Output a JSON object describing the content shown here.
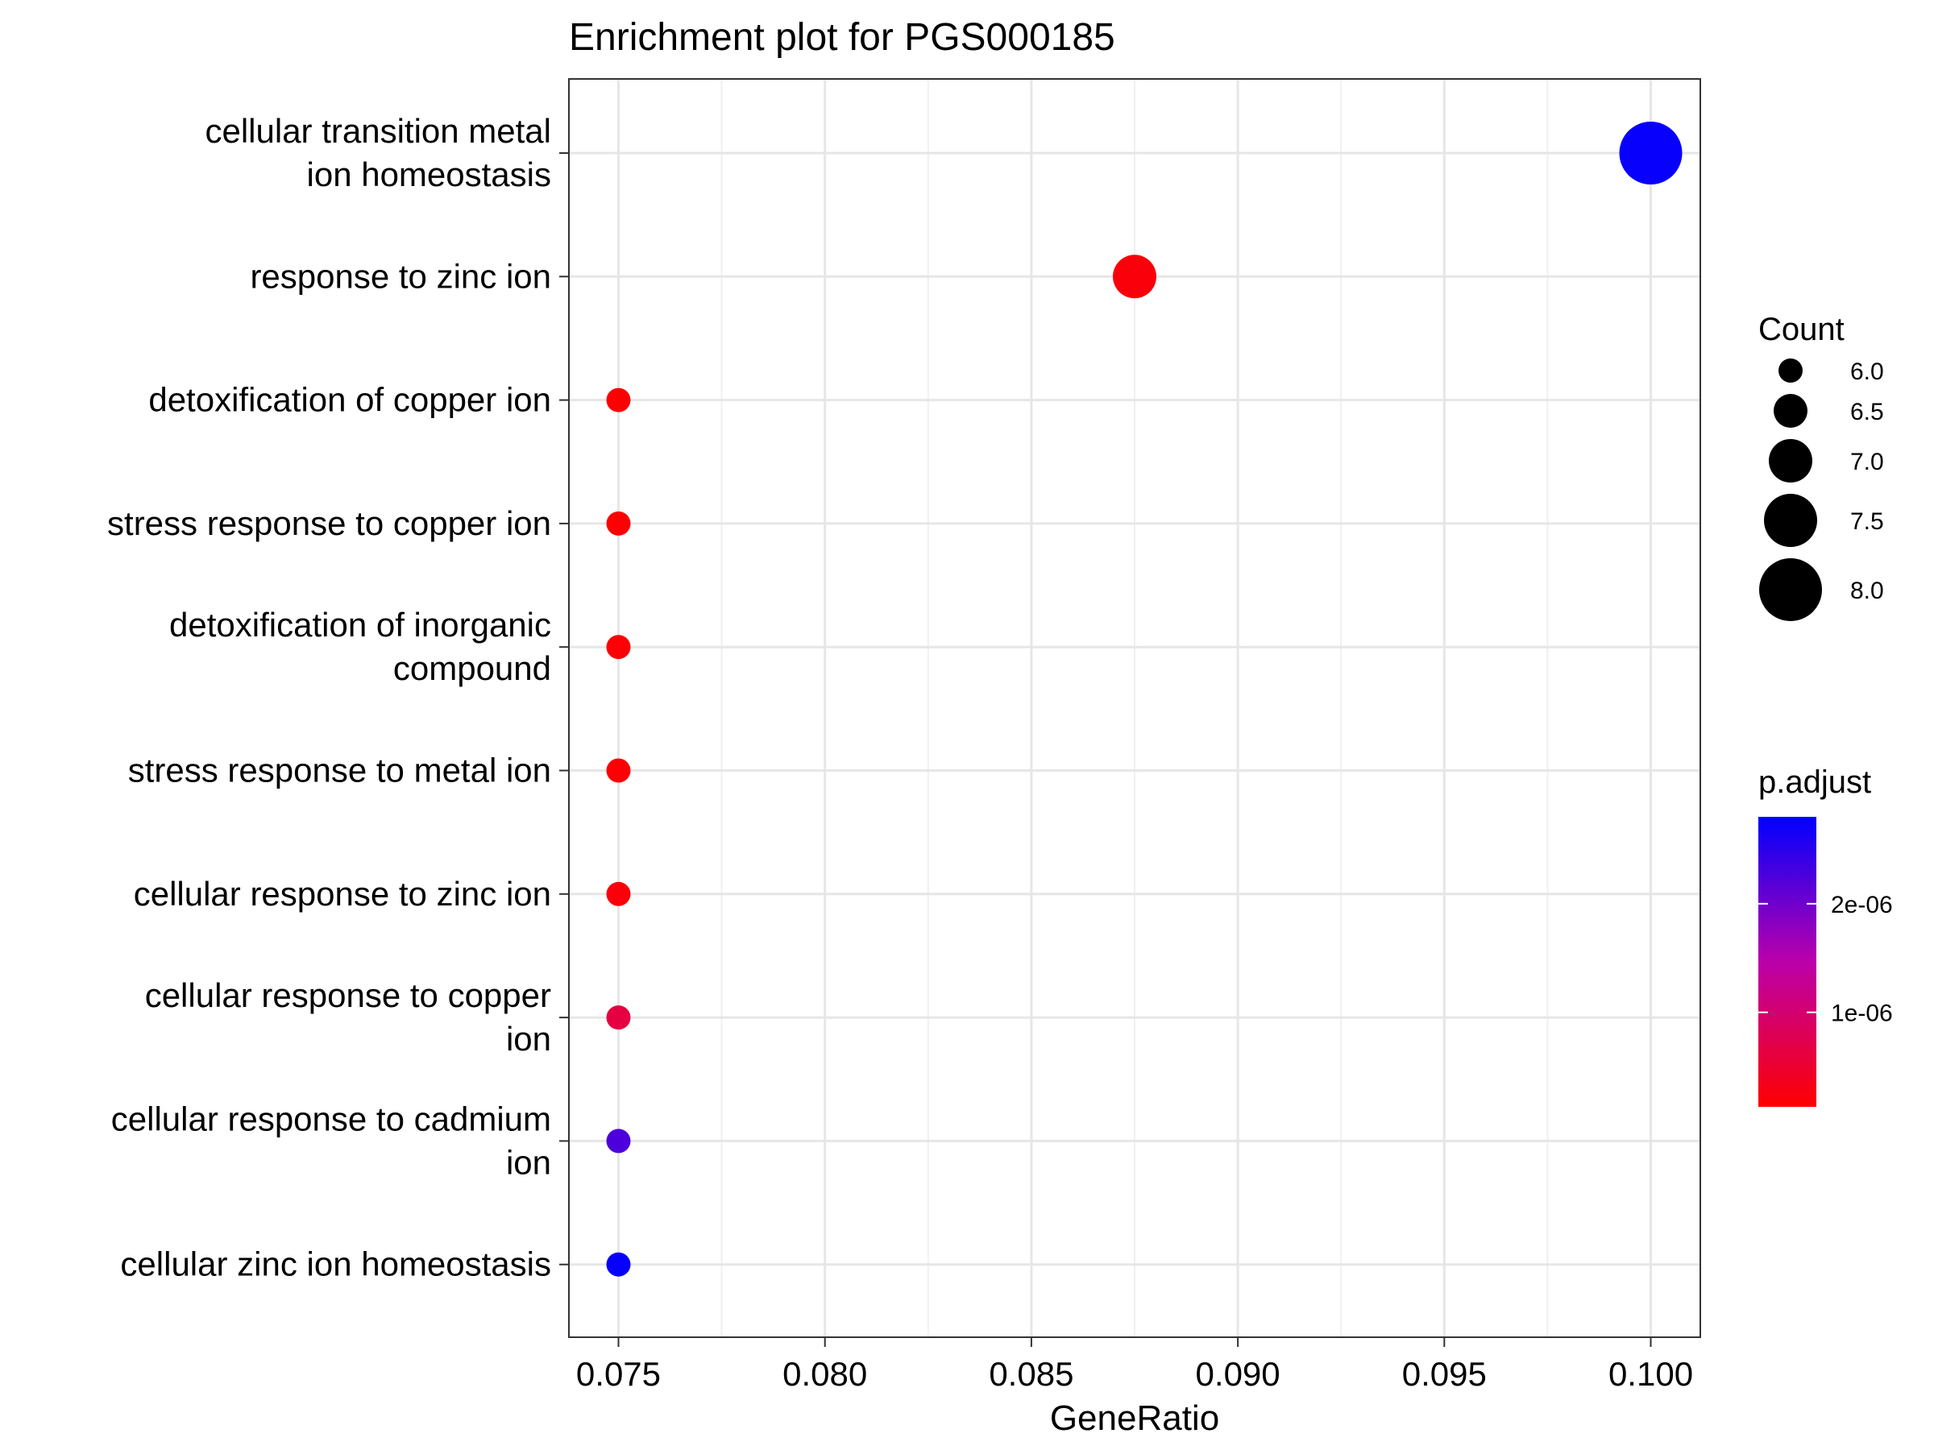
{
  "chart_data": {
    "type": "scatter",
    "title": "Enrichment plot for PGS000185",
    "xlabel": "GeneRatio",
    "ylabel": "",
    "xlim": [
      0.0738,
      0.1012
    ],
    "x_ticks": [
      "0.075",
      "0.080",
      "0.085",
      "0.090",
      "0.095",
      "0.100"
    ],
    "x_tick_values": [
      0.075,
      0.08,
      0.085,
      0.09,
      0.095,
      0.1
    ],
    "grid": true,
    "points": [
      {
        "term": "cellular transition metal ion homeostasis",
        "lines": [
          "cellular transition metal",
          "ion homeostasis"
        ],
        "gene_ratio": 0.1,
        "count": 8,
        "p_adjust": 2.75e-06
      },
      {
        "term": "response to zinc ion",
        "lines": [
          "response to zinc ion"
        ],
        "gene_ratio": 0.0875,
        "count": 7,
        "p_adjust": 2.2e-07
      },
      {
        "term": "detoxification of copper ion",
        "lines": [
          "detoxification of copper ion"
        ],
        "gene_ratio": 0.075,
        "count": 6,
        "p_adjust": 1.6e-07
      },
      {
        "term": "stress response to copper ion",
        "lines": [
          "stress response to copper ion"
        ],
        "gene_ratio": 0.075,
        "count": 6,
        "p_adjust": 1.6e-07
      },
      {
        "term": "detoxification of inorganic compound",
        "lines": [
          "detoxification of inorganic",
          "compound"
        ],
        "gene_ratio": 0.075,
        "count": 6,
        "p_adjust": 1.7e-07
      },
      {
        "term": "stress response to metal ion",
        "lines": [
          "stress response to metal ion"
        ],
        "gene_ratio": 0.075,
        "count": 6,
        "p_adjust": 1.7e-07
      },
      {
        "term": "cellular response to zinc ion",
        "lines": [
          "cellular response to zinc ion"
        ],
        "gene_ratio": 0.075,
        "count": 6,
        "p_adjust": 2e-07
      },
      {
        "term": "cellular response to copper ion",
        "lines": [
          "cellular response to copper",
          "ion"
        ],
        "gene_ratio": 0.075,
        "count": 6,
        "p_adjust": 6.5e-07
      },
      {
        "term": "cellular response to cadmium ion",
        "lines": [
          "cellular response to cadmium",
          "ion"
        ],
        "gene_ratio": 0.075,
        "count": 6,
        "p_adjust": 2.25e-06
      },
      {
        "term": "cellular zinc ion homeostasis",
        "lines": [
          "cellular zinc ion homeostasis"
        ],
        "gene_ratio": 0.075,
        "count": 6,
        "p_adjust": 2.75e-06
      }
    ],
    "size_legend": {
      "title": "Count",
      "values": [
        6.0,
        6.5,
        7.0,
        7.5,
        8.0
      ],
      "labels": [
        "6.0",
        "6.5",
        "7.0",
        "7.5",
        "8.0"
      ]
    },
    "color_legend": {
      "title": "p.adjust",
      "low_color": "#ff0000",
      "mid_color": "#bb00aa",
      "high_color": "#0000ff",
      "range": [
        1.3e-07,
        2.8e-06
      ],
      "ticks": [
        1e-06,
        2e-06
      ],
      "tick_labels": [
        "1e-06",
        "2e-06"
      ]
    },
    "legend_position": "right"
  }
}
